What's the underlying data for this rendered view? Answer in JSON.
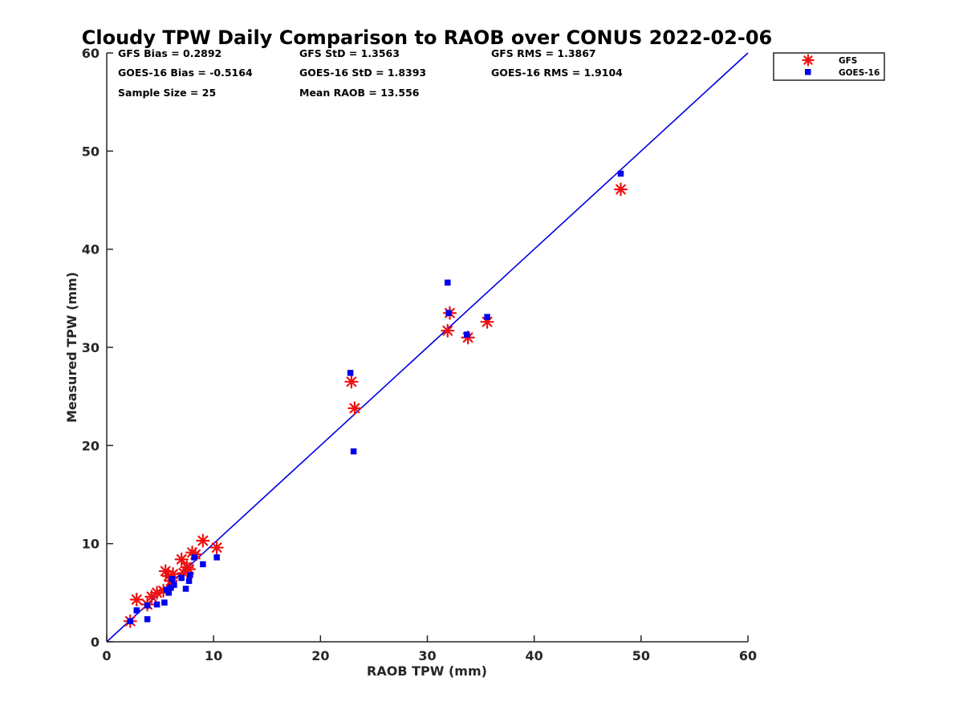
{
  "chart_data": {
    "type": "scatter",
    "title": "Cloudy TPW Daily Comparison to RAOB over CONUS 2022-02-06",
    "xlabel": "RAOB TPW (mm)",
    "ylabel": "Measured TPW (mm)",
    "xlim": [
      0,
      60
    ],
    "ylim": [
      0,
      60
    ],
    "xticks": [
      "0",
      "10",
      "20",
      "30",
      "40",
      "50",
      "60"
    ],
    "yticks": [
      "0",
      "10",
      "20",
      "30",
      "40",
      "50",
      "60"
    ],
    "grid": false,
    "legend_position": "top-right outside",
    "stats": {
      "gfs_bias": "GFS Bias = 0.2892",
      "gfs_std": "GFS StD = 1.3563",
      "gfs_rms": "GFS RMS = 1.3867",
      "goes_bias": "GOES-16 Bias = -0.5164",
      "goes_std": "GOES-16 StD = 1.8393",
      "goes_rms": "GOES-16 RMS = 1.9104",
      "sample_size": "Sample Size = 25",
      "mean_raob": "Mean RAOB = 13.556"
    },
    "reference_line": {
      "x": [
        0,
        60
      ],
      "y": [
        0,
        60
      ],
      "color": "#0000e0"
    },
    "series": [
      {
        "name": "GFS",
        "marker": "asterisk",
        "color": "#ee1111",
        "points": [
          [
            2.2,
            2.1
          ],
          [
            2.8,
            4.3
          ],
          [
            3.8,
            3.8
          ],
          [
            4.2,
            4.6
          ],
          [
            4.7,
            5.0
          ],
          [
            5.5,
            7.2
          ],
          [
            5.8,
            6.7
          ],
          [
            6.0,
            6.2
          ],
          [
            7.0,
            8.4
          ],
          [
            7.5,
            7.6
          ],
          [
            7.7,
            7.4
          ],
          [
            8.0,
            9.1
          ],
          [
            9.0,
            10.3
          ],
          [
            10.3,
            9.6
          ],
          [
            22.9,
            26.5
          ],
          [
            23.2,
            23.8
          ],
          [
            31.9,
            31.7
          ],
          [
            32.1,
            33.5
          ],
          [
            33.8,
            31.0
          ],
          [
            35.6,
            32.6
          ],
          [
            48.1,
            46.1
          ],
          [
            5.3,
            5.2
          ],
          [
            6.2,
            6.9
          ],
          [
            8.3,
            8.9
          ],
          [
            7.2,
            7.0
          ]
        ]
      },
      {
        "name": "GOES-16",
        "marker": "square",
        "color": "#0000ee",
        "points": [
          [
            2.2,
            2.1
          ],
          [
            2.8,
            3.2
          ],
          [
            3.8,
            2.3
          ],
          [
            3.8,
            3.7
          ],
          [
            4.7,
            3.8
          ],
          [
            5.4,
            4.0
          ],
          [
            5.8,
            5.0
          ],
          [
            6.0,
            5.5
          ],
          [
            6.3,
            5.8
          ],
          [
            7.0,
            6.5
          ],
          [
            7.4,
            5.4
          ],
          [
            7.7,
            6.2
          ],
          [
            7.8,
            6.8
          ],
          [
            8.2,
            8.6
          ],
          [
            9.0,
            7.9
          ],
          [
            10.3,
            8.6
          ],
          [
            22.8,
            27.4
          ],
          [
            23.1,
            19.4
          ],
          [
            31.9,
            36.6
          ],
          [
            32.0,
            33.5
          ],
          [
            33.7,
            31.3
          ],
          [
            35.6,
            33.1
          ],
          [
            48.1,
            47.7
          ],
          [
            5.6,
            5.3
          ],
          [
            6.1,
            6.4
          ]
        ]
      }
    ]
  },
  "legend": {
    "items": [
      {
        "label": "GFS",
        "color": "#ee1111",
        "marker": "asterisk"
      },
      {
        "label": "GOES-16",
        "color": "#0000ee",
        "marker": "square"
      }
    ]
  }
}
